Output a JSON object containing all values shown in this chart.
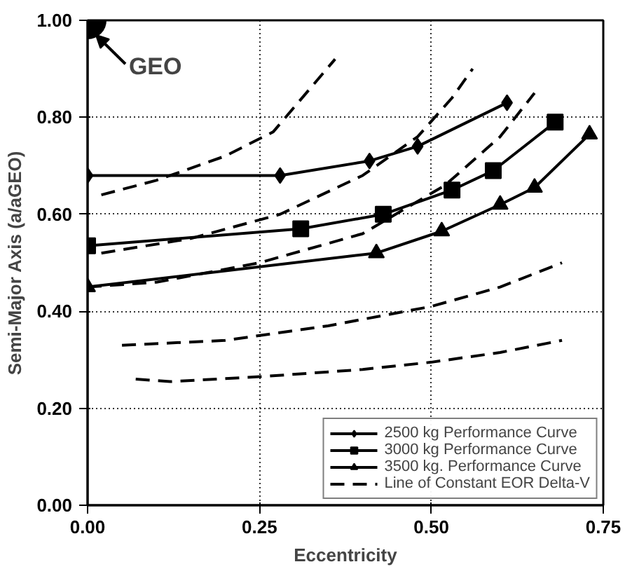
{
  "chart_data": {
    "type": "line",
    "xlabel": "Eccentricity",
    "ylabel": "Semi-Major Axis (a/aGEO)",
    "xlim": [
      0,
      0.75
    ],
    "ylim": [
      0,
      1.0
    ],
    "xticks": [
      {
        "value": 0,
        "label": "0.00"
      },
      {
        "value": 0.25,
        "label": "0.25"
      },
      {
        "value": 0.5,
        "label": "0.50"
      },
      {
        "value": 0.75,
        "label": "0.75"
      }
    ],
    "yticks": [
      {
        "value": 0,
        "label": "0.00"
      },
      {
        "value": 0.2,
        "label": "0.20"
      },
      {
        "value": 0.4,
        "label": "0.40"
      },
      {
        "value": 0.6,
        "label": "0.60"
      },
      {
        "value": 0.8,
        "label": "0.80"
      },
      {
        "value": 1.0,
        "label": "1.00"
      }
    ],
    "grid": true,
    "legend": "bottom right",
    "line_style": "solid",
    "annotations": [
      {
        "text": "GEO",
        "x": 0,
        "y": 1.0
      }
    ],
    "series": [
      {
        "name": "2500 kg Performance Curve",
        "color": "#000000",
        "marker": "diamond",
        "x": [
          0,
          0.28,
          0.41,
          0.48,
          0.61
        ],
        "values": [
          0.68,
          0.68,
          0.71,
          0.74,
          0.83
        ]
      },
      {
        "name": "3000 kg Performance Curve",
        "color": "#000000",
        "marker": "square",
        "x": [
          0,
          0.31,
          0.43,
          0.53,
          0.59,
          0.68
        ],
        "values": [
          0.535,
          0.57,
          0.6,
          0.65,
          0.69,
          0.79
        ]
      },
      {
        "name": "3500 kg. Performance Curve",
        "color": "#000000",
        "marker": "triangle",
        "x": [
          0,
          0.42,
          0.515,
          0.6,
          0.65,
          0.73
        ],
        "values": [
          0.45,
          0.52,
          0.565,
          0.62,
          0.655,
          0.765
        ]
      },
      {
        "name": "Line of Constant EOR Delta-V",
        "color": "#000000",
        "marker": "none",
        "line_style": "dashed",
        "x": [
          0.02,
          0.1,
          0.2,
          0.27,
          0.3,
          0.33,
          0.36
        ],
        "values": [
          0.64,
          0.67,
          0.72,
          0.77,
          0.82,
          0.87,
          0.92
        ]
      },
      {
        "color": "#000000",
        "marker": "none",
        "line_style": "dashed",
        "x": [
          0.02,
          0.15,
          0.28,
          0.4,
          0.48,
          0.53,
          0.56
        ],
        "values": [
          0.52,
          0.55,
          0.6,
          0.68,
          0.76,
          0.84,
          0.9
        ]
      },
      {
        "color": "#000000",
        "marker": "none",
        "line_style": "dashed",
        "x": [
          0,
          0.1,
          0.25,
          0.4,
          0.52,
          0.6,
          0.65
        ],
        "values": [
          0.45,
          0.46,
          0.5,
          0.56,
          0.66,
          0.76,
          0.85
        ]
      },
      {
        "color": "#000000",
        "marker": "none",
        "line_style": "dashed",
        "x": [
          0.05,
          0.2,
          0.35,
          0.5,
          0.6,
          0.69
        ],
        "values": [
          0.33,
          0.34,
          0.37,
          0.41,
          0.45,
          0.5
        ]
      },
      {
        "color": "#000000",
        "marker": "none",
        "line_style": "dashed",
        "x": [
          0.07,
          0.12,
          0.25,
          0.4,
          0.5,
          0.6,
          0.69
        ],
        "values": [
          0.26,
          0.255,
          0.265,
          0.28,
          0.295,
          0.315,
          0.34
        ]
      },
      {
        "type": "scatter",
        "color": "#000000",
        "marker": "circle",
        "x": [
          0
        ],
        "values": [
          1.0
        ]
      }
    ]
  }
}
